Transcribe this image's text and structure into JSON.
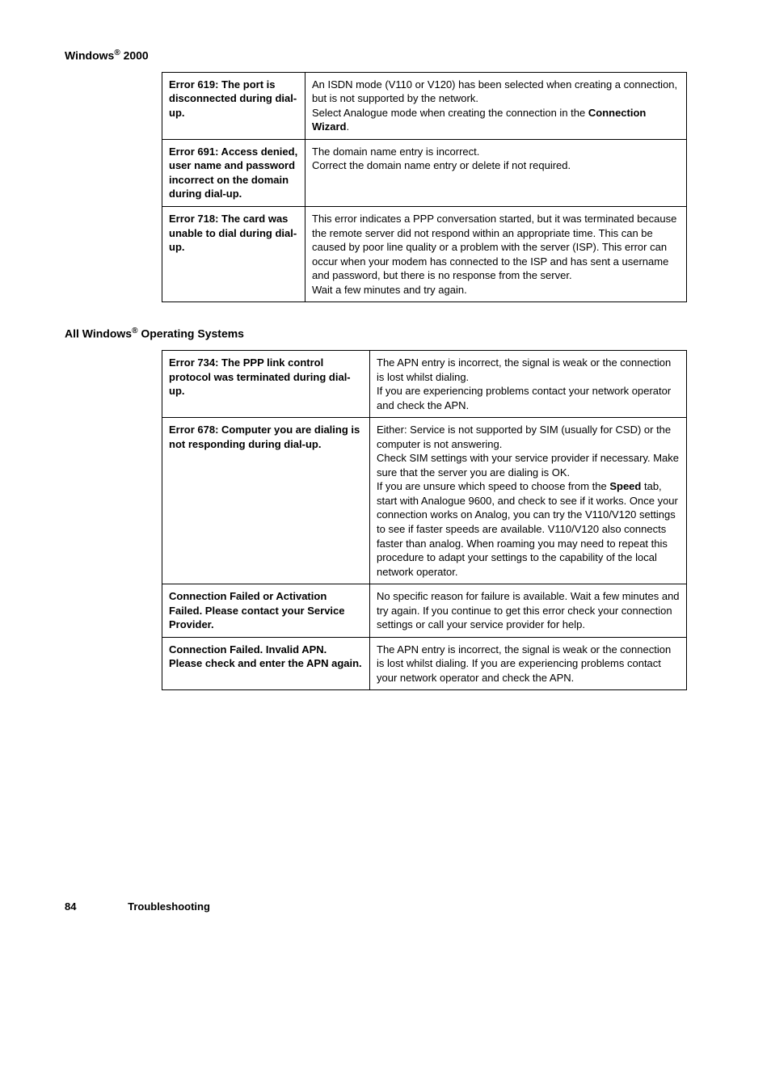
{
  "sections": {
    "win2000": {
      "heading_prefix": "Windows",
      "heading_suffix": " 2000",
      "rows": [
        {
          "label": "Error 619: The port is disconnected during dial-up.",
          "body_html": "An ISDN mode (V110 or V120) has been selected when creating a connection, but is not supported by the network.<br>Select Analogue mode when creating the connection in the <b>Connection Wizard</b>."
        },
        {
          "label": "Error 691: Access denied, user name and password incorrect on the domain during dial-up.",
          "body_html": "The domain name entry is incorrect.<br>Correct the domain name entry or delete if not required."
        },
        {
          "label": "Error 718: The card was unable to dial during dial-up.",
          "body_html": "This error indicates a PPP conversation started, but it was terminated because the remote server did not respond within an appropriate time. This can be caused by poor line quality or a problem with the server (ISP). This error can occur when your modem has connected to the ISP and has sent a username and password, but there is no response from the server.<br>Wait a few minutes and try again."
        }
      ]
    },
    "allwindows": {
      "heading_prefix": "All Windows",
      "heading_suffix": " Operating Systems",
      "rows": [
        {
          "label": "Error 734: The PPP link control protocol was terminated during dial-up.",
          "body_html": "The APN entry is incorrect, the signal is weak or the connection is lost whilst dialing.<br>If you are experiencing problems contact your network operator and check the APN."
        },
        {
          "label": "Error 678: Computer you are dialing is not responding during dial-up.",
          "body_html": "Either: Service is not supported by SIM (usually for CSD) or the computer is not answering.<br>Check SIM settings with your service provider if necessary. Make sure that the server you are dialing is OK.<br>If you are unsure which speed to choose from the <b>Speed</b> tab, start with Analogue 9600, and check to see if it works. Once your connection works on Analog, you can try the V110/V120 settings to see if faster speeds are available. V110/V120 also connects faster than analog. When roaming you may need to repeat this procedure to adapt your settings to the capability of the local network operator."
        },
        {
          "label": "Connection Failed or Activation Failed. Please contact your Service Provider.",
          "body_html": "No specific reason for failure is available. Wait a few minutes and try again. If you continue to get this error check your connection settings or call your service provider for help."
        },
        {
          "label": "Connection Failed. Invalid APN. Please check and enter the APN again.",
          "body_html": "The APN entry is incorrect, the signal is weak or the connection is lost whilst dialing. If you are experiencing problems contact your network operator and check the APN."
        }
      ]
    }
  },
  "footer": {
    "page_number": "84",
    "title": "Troubleshooting"
  }
}
